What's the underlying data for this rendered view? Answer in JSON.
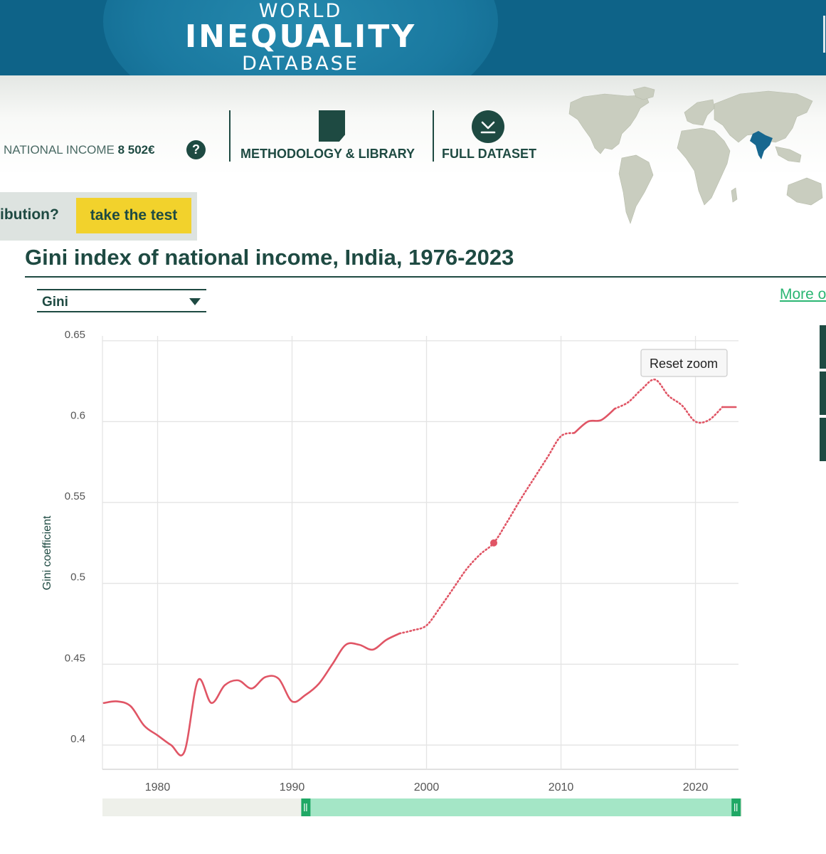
{
  "header": {
    "logo_line1": "WORLD",
    "logo_line2": "INEQUALITY",
    "logo_line3": "DATABASE",
    "national_income_label": "NATIONAL INCOME",
    "national_income_value": "8 502€",
    "help_glyph": "?",
    "nav": [
      {
        "label": "METHODOLOGY & LIBRARY",
        "icon": "document-icon"
      },
      {
        "label": "FULL DATASET",
        "icon": "download-icon"
      }
    ]
  },
  "quiz": {
    "question": "ibution?",
    "button_label": "take the test"
  },
  "chart_panel": {
    "title": "Gini index of national income, India, 1976-2023",
    "indicator_select": "Gini",
    "more_link": "More o",
    "reset_zoom_label": "Reset zoom"
  },
  "colors": {
    "brand_blue": "#0e6388",
    "dark_green": "#1e4a42",
    "accent_yellow": "#f2d22c",
    "series_red": "#e05565",
    "link_green": "#2bb673",
    "navigator_green": "#a4e6c6"
  },
  "chart_data": {
    "type": "line",
    "title": "Gini index of national income, India, 1976-2023",
    "xlabel": "",
    "ylabel": "Gini coefficient",
    "xlim": [
      1975.9,
      2023.2
    ],
    "ylim": [
      0.385,
      0.653
    ],
    "x_ticks": [
      "1980",
      "1990",
      "2000",
      "2010",
      "2020"
    ],
    "y_ticks": [
      "0.4",
      "0.45",
      "0.5",
      "0.55",
      "0.6",
      "0.65"
    ],
    "grid": true,
    "legend": "none",
    "highlight_point": {
      "x": 2005,
      "y": 0.525
    },
    "series": [
      {
        "name": "Gini",
        "solid_segments": [
          [
            [
              1976,
              0.426
            ],
            [
              1977,
              0.427
            ],
            [
              1978,
              0.424
            ],
            [
              1979,
              0.412
            ],
            [
              1980,
              0.406
            ],
            [
              1981,
              0.4
            ],
            [
              1982,
              0.396
            ],
            [
              1983,
              0.44
            ],
            [
              1984,
              0.426
            ],
            [
              1985,
              0.437
            ],
            [
              1986,
              0.44
            ],
            [
              1987,
              0.435
            ],
            [
              1988,
              0.442
            ],
            [
              1989,
              0.441
            ],
            [
              1990,
              0.427
            ],
            [
              1991,
              0.431
            ],
            [
              1992,
              0.438
            ],
            [
              1993,
              0.45
            ],
            [
              1994,
              0.462
            ],
            [
              1995,
              0.462
            ],
            [
              1996,
              0.459
            ],
            [
              1997,
              0.465
            ],
            [
              1998,
              0.469
            ]
          ],
          [
            [
              2011,
              0.593
            ],
            [
              2012,
              0.6
            ],
            [
              2013,
              0.601
            ],
            [
              2014,
              0.608
            ]
          ],
          [
            [
              2022,
              0.609
            ],
            [
              2023,
              0.609
            ]
          ]
        ],
        "dotted_segments": [
          [
            [
              1998,
              0.469
            ],
            [
              1999,
              0.471
            ],
            [
              2000,
              0.474
            ],
            [
              2001,
              0.485
            ],
            [
              2002,
              0.497
            ],
            [
              2003,
              0.509
            ],
            [
              2004,
              0.518
            ],
            [
              2005,
              0.525
            ],
            [
              2006,
              0.538
            ],
            [
              2007,
              0.552
            ],
            [
              2008,
              0.565
            ],
            [
              2009,
              0.578
            ],
            [
              2010,
              0.591
            ],
            [
              2011,
              0.593
            ]
          ],
          [
            [
              2014,
              0.608
            ],
            [
              2015,
              0.612
            ],
            [
              2016,
              0.62
            ],
            [
              2017,
              0.626
            ],
            [
              2018,
              0.616
            ],
            [
              2019,
              0.61
            ],
            [
              2020,
              0.6
            ],
            [
              2021,
              0.601
            ],
            [
              2022,
              0.609
            ]
          ]
        ]
      }
    ],
    "navigator": {
      "range_start": 1991,
      "range_end": 2023
    }
  }
}
